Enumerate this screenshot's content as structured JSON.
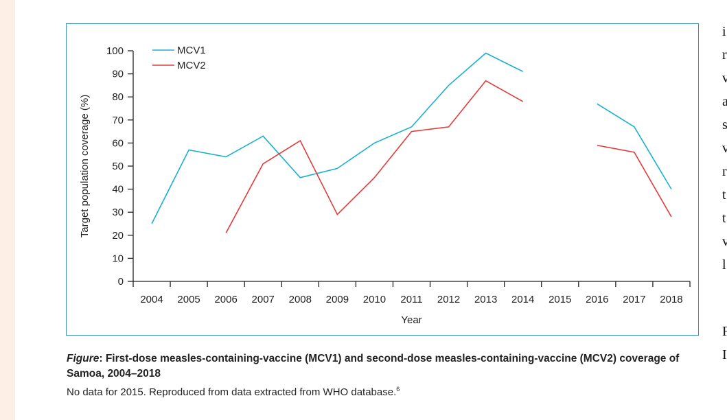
{
  "chart_data": {
    "type": "line",
    "categories": [
      "2004",
      "2005",
      "2006",
      "2007",
      "2008",
      "2009",
      "2010",
      "2011",
      "2012",
      "2013",
      "2014",
      "2015",
      "2016",
      "2017",
      "2018"
    ],
    "series": [
      {
        "name": "MCV1",
        "color": "#1ab0cd",
        "values": [
          25,
          57,
          54,
          63,
          45,
          49,
          60,
          67,
          85,
          99,
          91,
          null,
          77,
          67,
          40
        ]
      },
      {
        "name": "MCV2",
        "color": "#e03c3c",
        "values": [
          null,
          null,
          21,
          51,
          61,
          29,
          45,
          65,
          67,
          87,
          78,
          null,
          59,
          56,
          28
        ]
      }
    ],
    "xlabel": "Year",
    "ylabel": "Target population coverage (%)",
    "ylim": [
      0,
      100
    ],
    "yticks": [
      0,
      10,
      20,
      30,
      40,
      50,
      60,
      70,
      80,
      90,
      100
    ],
    "grid": false,
    "legend": "top-left"
  },
  "caption": {
    "label": "Figure",
    "title": ": First-dose measles-containing-vaccine (MCV1) and second-dose measles-containing-vaccine (MCV2) coverage of Samoa, 2004–2018",
    "note": "No data for 2015. Reproduced from data extracted from WHO database.",
    "ref": "6"
  },
  "side_text": [
    "i",
    "r",
    "v",
    "a",
    "s",
    "v",
    "r",
    "t",
    "t",
    "v",
    "l"
  ],
  "side_text_bottom": [
    "F",
    "I"
  ]
}
